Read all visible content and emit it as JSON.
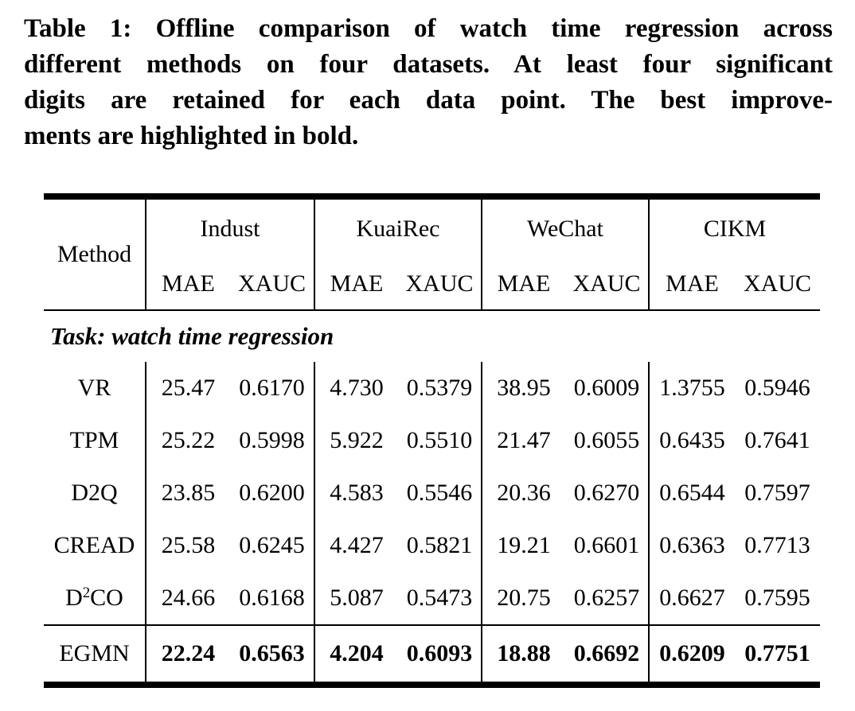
{
  "colors": {
    "text": "#000000",
    "background": "#ffffff",
    "rules": "#000000"
  },
  "caption": {
    "lines": [
      "Table 1: Offline comparison of watch time regression across",
      "different methods on four datasets. At least four significant",
      "digits are retained for each data point. The best improve-",
      "ments are highlighted in bold."
    ]
  },
  "table": {
    "method_header": "Method",
    "groups": [
      {
        "name": "Indust",
        "subcols": [
          "MAE",
          "XAUC"
        ]
      },
      {
        "name": "KuaiRec",
        "subcols": [
          "MAE",
          "XAUC"
        ]
      },
      {
        "name": "WeChat",
        "subcols": [
          "MAE",
          "XAUC"
        ]
      },
      {
        "name": "CIKM",
        "subcols": [
          "MAE",
          "XAUC"
        ]
      }
    ],
    "task_label": "Task: watch time regression",
    "rows": [
      {
        "method": "VR",
        "emphasized": false,
        "values": [
          "25.47",
          "0.6170",
          "4.730",
          "0.5379",
          "38.95",
          "0.6009",
          "1.3755",
          "0.5946"
        ]
      },
      {
        "method": "TPM",
        "emphasized": false,
        "values": [
          "25.22",
          "0.5998",
          "5.922",
          "0.5510",
          "21.47",
          "0.6055",
          "0.6435",
          "0.7641"
        ]
      },
      {
        "method": "D2Q",
        "emphasized": false,
        "values": [
          "23.85",
          "0.6200",
          "4.583",
          "0.5546",
          "20.36",
          "0.6270",
          "0.6544",
          "0.7597"
        ]
      },
      {
        "method": "CREAD",
        "emphasized": false,
        "values": [
          "25.58",
          "0.6245",
          "4.427",
          "0.5821",
          "19.21",
          "0.6601",
          "0.6363",
          "0.7713"
        ]
      },
      {
        "method": "D²CO",
        "emphasized": false,
        "values": [
          "24.66",
          "0.6168",
          "5.087",
          "0.5473",
          "20.75",
          "0.6257",
          "0.6627",
          "0.7595"
        ]
      },
      {
        "method": "EGMN",
        "emphasized": true,
        "values": [
          "22.24",
          "0.6563",
          "4.204",
          "0.6093",
          "18.88",
          "0.6692",
          "0.6209",
          "0.7751"
        ]
      }
    ]
  }
}
